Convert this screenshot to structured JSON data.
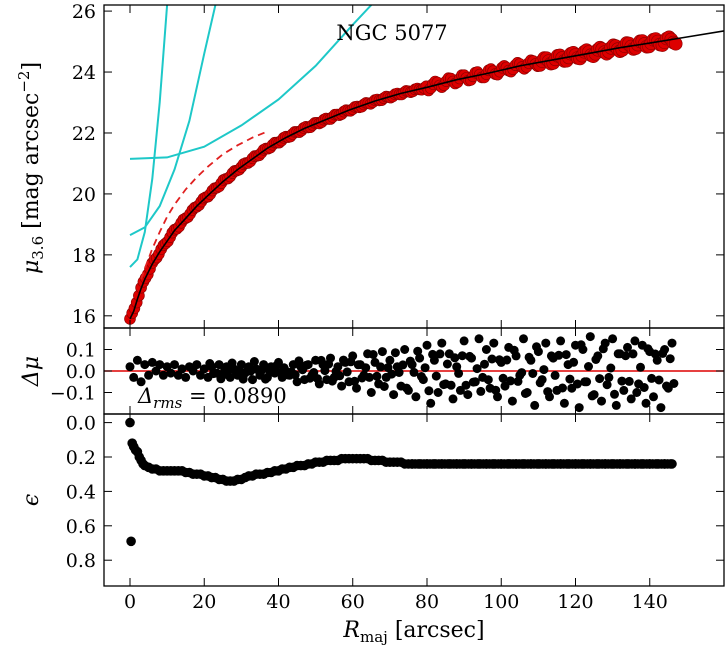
{
  "chart_data": [
    {
      "type": "line",
      "panel": "surface-brightness-profile",
      "title": "NGC 5077",
      "xlabel": "",
      "ylabel": "μ3.6 [mag arcsec⁻²]",
      "ylabel_parts": {
        "symbol": "μ",
        "sub": "3.6",
        "unit": " [mag arcsec",
        "sup": "−2",
        "close": "]"
      },
      "xlim": [
        -7,
        160
      ],
      "ylim": [
        26.2,
        15.6
      ],
      "y_inverted": true,
      "yticks": [
        16,
        18,
        20,
        22,
        24,
        26
      ],
      "ytick_labels": [
        "16",
        "18",
        "20",
        "22",
        "24",
        "26"
      ],
      "data_color": "#dd0000",
      "series": [
        {
          "name": "data",
          "style": "red-markers",
          "x": [
            0,
            1,
            2,
            3,
            4,
            6,
            8,
            10,
            12,
            15,
            18,
            21,
            25,
            29,
            33,
            37,
            42,
            47,
            53,
            59,
            66,
            73,
            80,
            88,
            96,
            105,
            114,
            123,
            132,
            140,
            147
          ],
          "y": [
            15.9,
            16.15,
            16.55,
            16.9,
            17.2,
            17.7,
            18.1,
            18.45,
            18.8,
            19.2,
            19.6,
            19.95,
            20.4,
            20.8,
            21.15,
            21.5,
            21.85,
            22.15,
            22.45,
            22.75,
            23.05,
            23.3,
            23.5,
            23.75,
            23.95,
            24.2,
            24.4,
            24.6,
            24.8,
            24.95,
            25.05
          ]
        },
        {
          "name": "total-model",
          "style": "black-line",
          "x": [
            0,
            1,
            2,
            3,
            4,
            6,
            8,
            10,
            12,
            15,
            18,
            21,
            25,
            29,
            33,
            37,
            42,
            47,
            53,
            59,
            66,
            73,
            80,
            88,
            96,
            105,
            114,
            123,
            132,
            140,
            150,
            160
          ],
          "y": [
            15.9,
            16.15,
            16.55,
            16.9,
            17.2,
            17.7,
            18.1,
            18.45,
            18.8,
            19.2,
            19.6,
            19.95,
            20.4,
            20.8,
            21.15,
            21.5,
            21.85,
            22.15,
            22.45,
            22.75,
            23.05,
            23.3,
            23.5,
            23.75,
            23.95,
            24.2,
            24.4,
            24.6,
            24.8,
            24.95,
            25.15,
            25.35
          ]
        },
        {
          "name": "model-offset",
          "style": "red-dashed",
          "x": [
            3,
            4,
            6,
            8,
            10,
            12,
            15,
            18,
            21,
            25,
            29,
            33,
            37
          ],
          "y": [
            17.2,
            17.55,
            18.2,
            18.75,
            19.25,
            19.65,
            20.15,
            20.55,
            20.9,
            21.3,
            21.6,
            21.85,
            22.05
          ]
        },
        {
          "name": "component-1",
          "style": "cyan-line",
          "x": [
            0,
            2,
            4,
            6,
            8,
            10
          ],
          "y": [
            17.6,
            17.85,
            18.75,
            20.5,
            23.0,
            26.2
          ]
        },
        {
          "name": "component-2",
          "style": "cyan-line",
          "x": [
            0,
            4,
            8,
            12,
            16,
            20,
            23
          ],
          "y": [
            18.65,
            18.9,
            19.6,
            20.8,
            22.4,
            24.6,
            26.2
          ]
        },
        {
          "name": "component-3",
          "style": "cyan-line",
          "x": [
            0,
            10,
            20,
            30,
            40,
            50,
            60,
            65
          ],
          "y": [
            21.15,
            21.2,
            21.55,
            22.25,
            23.1,
            24.2,
            25.55,
            26.2
          ]
        }
      ]
    },
    {
      "type": "scatter",
      "panel": "residuals",
      "xlabel": "",
      "ylabel": "Δμ",
      "xlim": [
        -7,
        160
      ],
      "ylim": [
        0.2,
        -0.2
      ],
      "y_inverted": true,
      "yticks": [
        -0.1,
        0.0,
        0.1
      ],
      "ytick_labels": [
        "−0.1",
        "0.0",
        "0.1"
      ],
      "zero_line_color": "#dd0000",
      "annotation": "Δrms = 0.0890",
      "annotation_parts": {
        "symbol": "Δ",
        "sub": "rms",
        "rest": " = 0.0890"
      },
      "series": [
        {
          "name": "residuals",
          "x": [
            0,
            1,
            2,
            3,
            4,
            5,
            6,
            7,
            8,
            9,
            10,
            11,
            12,
            13,
            14,
            15,
            16,
            17,
            18,
            19,
            20,
            21,
            22,
            23,
            24,
            25,
            26,
            27,
            28,
            29,
            30,
            31,
            32,
            33,
            34,
            35,
            36,
            37,
            38,
            39,
            40,
            41,
            42,
            43,
            44,
            45,
            46,
            47,
            48,
            49,
            50,
            51,
            52,
            53,
            54,
            55,
            56,
            57,
            58,
            59,
            60,
            61,
            62,
            63,
            64,
            65,
            66,
            67,
            68,
            69,
            70,
            71,
            72,
            73,
            74,
            75,
            76,
            77,
            78,
            79,
            80,
            81,
            82,
            83,
            84,
            85,
            86,
            87,
            88,
            89,
            90,
            91,
            92,
            93,
            94,
            95,
            96,
            97,
            98,
            99,
            100,
            101,
            102,
            103,
            104,
            105,
            106,
            107,
            108,
            109,
            110,
            111,
            112,
            113,
            114,
            115,
            116,
            117,
            118,
            119,
            120,
            121,
            122,
            123,
            124,
            125,
            126,
            127,
            128,
            129,
            130,
            131,
            132,
            133,
            134,
            135,
            136,
            137,
            138,
            139,
            140,
            141,
            142,
            143,
            144,
            145,
            146
          ],
          "y": [
            0.02,
            -0.03,
            0.05,
            -0.05,
            0.03,
            -0.02,
            0.04,
            0.0,
            0.03,
            -0.02,
            0.02,
            -0.01,
            0.03,
            -0.02,
            0.01,
            -0.03,
            0.02,
            0.0,
            0.03,
            -0.02,
            0.01,
            -0.03,
            0.02,
            -0.01,
            0.03,
            -0.02,
            0.02,
            -0.03,
            0.01,
            -0.02,
            0.03,
            -0.01,
            0.02,
            -0.04,
            0.01,
            -0.02,
            0.03,
            -0.03,
            0.02,
            -0.01,
            0.04,
            -0.03,
            0.0,
            -0.02,
            0.03,
            -0.05,
            0.02,
            -0.04,
            0.03,
            -0.02,
            0.05,
            -0.06,
            0.03,
            -0.04,
            0.06,
            -0.03,
            0.02,
            -0.07,
            0.04,
            -0.05,
            0.07,
            -0.08,
            0.03,
            -0.02,
            0.08,
            -0.1,
            0.04,
            -0.06,
            0.09,
            -0.03,
            0.05,
            -0.11,
            0.02,
            -0.07,
            0.1,
            -0.09,
            0.03,
            -0.12,
            0.06,
            -0.04,
            0.12,
            -0.15,
            0.05,
            -0.1,
            0.13,
            -0.06,
            0.08,
            -0.13,
            0.02,
            -0.09,
            0.14,
            -0.11,
            0.06,
            -0.05,
            0.15,
            -0.03,
            0.1,
            -0.08,
            0.13,
            -0.12,
            0.04,
            -0.07,
            0.11,
            -0.14,
            0.07,
            -0.02,
            0.15,
            -0.1,
            0.05,
            -0.16,
            0.09,
            -0.04,
            0.13,
            -0.12,
            0.06,
            -0.09,
            0.14,
            -0.15,
            0.03,
            -0.08,
            0.12,
            -0.17,
            0.1,
            -0.05,
            0.16,
            -0.11,
            0.07,
            -0.14,
            0.13,
            -0.03,
            0.15,
            -0.16,
            0.08,
            -0.09,
            0.11,
            -0.13,
            0.14,
            -0.06,
            0.12,
            -0.15,
            0.09,
            -0.12,
            0.05,
            -0.17,
            0.1,
            -0.08,
            0.13
          ]
        }
      ]
    },
    {
      "type": "scatter",
      "panel": "ellipticity",
      "xlabel": "Rmaj [arcsec]",
      "xlabel_parts": {
        "symbol": "R",
        "sub": "maj",
        "rest": " [arcsec]"
      },
      "ylabel": "ϵ",
      "xlim": [
        -7,
        160
      ],
      "ylim": [
        -0.05,
        0.95
      ],
      "xticks": [
        0,
        20,
        40,
        60,
        80,
        100,
        120,
        140
      ],
      "xtick_labels": [
        "0",
        "20",
        "40",
        "60",
        "80",
        "100",
        "120",
        "140"
      ],
      "yticks": [
        0.0,
        0.2,
        0.4,
        0.6,
        0.8
      ],
      "ytick_labels": [
        "0.0",
        "0.2",
        "0.4",
        "0.6",
        "0.8"
      ],
      "series": [
        {
          "name": "ellipticity",
          "x": [
            0,
            0.3,
            0.6,
            1,
            1.5,
            2,
            2.5,
            3,
            3.5,
            4,
            5,
            6,
            7,
            8,
            9,
            10,
            11,
            12,
            13,
            14,
            15,
            16,
            17,
            18,
            19,
            20,
            21,
            22,
            23,
            24,
            25,
            26,
            27,
            28,
            29,
            30,
            31,
            32,
            33,
            34,
            35,
            36,
            37,
            38,
            39,
            40,
            41,
            42,
            43,
            44,
            45,
            46,
            47,
            48,
            49,
            50,
            51,
            52,
            53,
            54,
            55,
            56,
            57,
            58,
            59,
            60,
            61,
            62,
            63,
            64,
            65,
            66,
            67,
            68,
            69,
            70,
            71,
            72,
            73,
            74,
            75,
            76,
            78,
            80,
            82,
            84,
            86,
            88,
            90,
            92,
            94,
            96,
            98,
            100,
            102,
            104,
            106,
            108,
            110,
            112,
            114,
            116,
            118,
            120,
            122,
            124,
            126,
            128,
            130,
            132,
            134,
            136,
            138,
            140,
            142,
            144,
            146
          ],
          "y": [
            0.0,
            0.69,
            0.12,
            0.14,
            0.16,
            0.17,
            0.2,
            0.22,
            0.24,
            0.25,
            0.26,
            0.27,
            0.27,
            0.28,
            0.28,
            0.28,
            0.28,
            0.28,
            0.28,
            0.28,
            0.29,
            0.29,
            0.3,
            0.3,
            0.3,
            0.31,
            0.31,
            0.32,
            0.32,
            0.33,
            0.33,
            0.34,
            0.34,
            0.34,
            0.33,
            0.33,
            0.32,
            0.31,
            0.31,
            0.3,
            0.3,
            0.3,
            0.29,
            0.29,
            0.28,
            0.28,
            0.27,
            0.27,
            0.26,
            0.26,
            0.25,
            0.25,
            0.25,
            0.24,
            0.24,
            0.23,
            0.23,
            0.23,
            0.22,
            0.22,
            0.22,
            0.22,
            0.21,
            0.21,
            0.21,
            0.21,
            0.21,
            0.21,
            0.21,
            0.21,
            0.22,
            0.22,
            0.22,
            0.22,
            0.23,
            0.23,
            0.23,
            0.23,
            0.23,
            0.24,
            0.24,
            0.24,
            0.24,
            0.24,
            0.24,
            0.24,
            0.24,
            0.24,
            0.24,
            0.24,
            0.24,
            0.24,
            0.24,
            0.24,
            0.24,
            0.24,
            0.24,
            0.24,
            0.24,
            0.24,
            0.24,
            0.24,
            0.24,
            0.24,
            0.24,
            0.24,
            0.24,
            0.24,
            0.24,
            0.24,
            0.24,
            0.24,
            0.24,
            0.24,
            0.24,
            0.24,
            0.24
          ]
        }
      ]
    }
  ]
}
